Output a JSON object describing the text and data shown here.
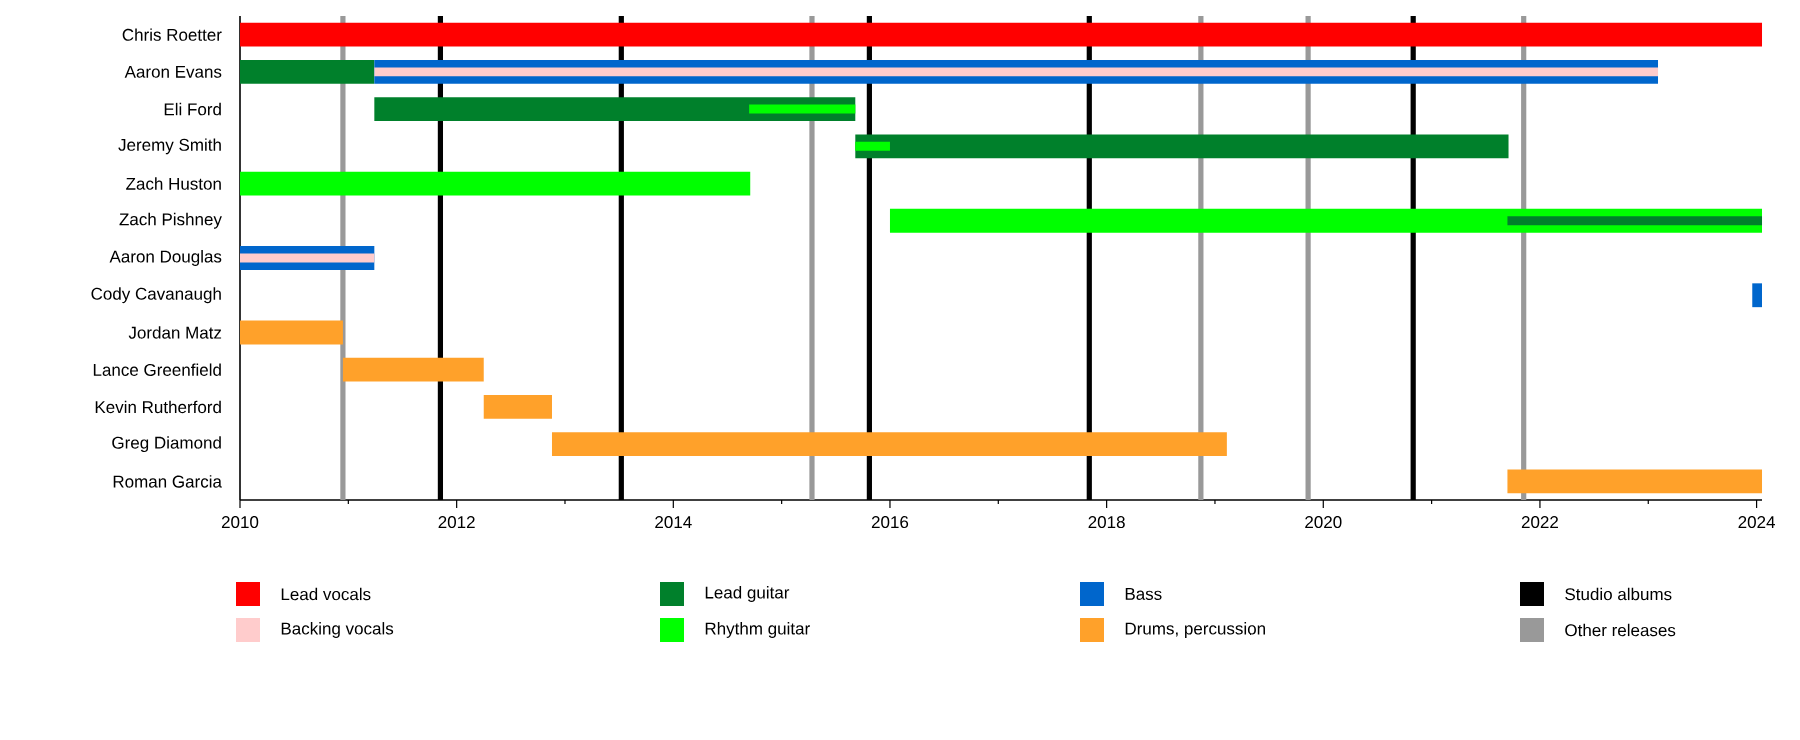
{
  "chart_data": {
    "type": "bar",
    "orientation": "horizontal",
    "legend": "bottom",
    "categories": [
      "Chris Roetter",
      "Aaron Evans",
      "Eli Ford",
      "Jeremy Smith",
      "Zach Huston",
      "Zach Pishney",
      "Aaron Douglas",
      "Cody Cavanaugh",
      "Jordan Matz",
      "Lance Greenfield",
      "Kevin Rutherford",
      "Greg Diamond",
      "Roman Garcia"
    ],
    "series": [
      {
        "name": "Lead vocals",
        "color": "#ff0000",
        "values": [
          14.05,
          null,
          null,
          null,
          null,
          null,
          null,
          null,
          null,
          null,
          null,
          null,
          null
        ],
        "base": [
          2010,
          null,
          null,
          null,
          null,
          null,
          null,
          null,
          null,
          null,
          null,
          null,
          null
        ]
      },
      {
        "name": "Backing vocals",
        "color": "#ffcccc",
        "values": [
          null,
          11.85,
          null,
          null,
          null,
          null,
          1.24,
          null,
          null,
          null,
          null,
          null,
          null
        ],
        "base": [
          null,
          2011.24,
          null,
          null,
          null,
          null,
          2010,
          null,
          null,
          null,
          null,
          null,
          null
        ]
      },
      {
        "name": "Lead guitar",
        "color": "#00802b",
        "values": [
          null,
          1.24,
          4.44,
          6.03,
          null,
          null,
          null,
          null,
          null,
          null,
          null,
          null,
          null
        ],
        "base": [
          null,
          2010,
          2011.24,
          2015.68,
          null,
          null,
          null,
          null,
          null,
          null,
          null,
          null,
          null
        ]
      },
      {
        "name": "Rhythm guitar",
        "color": "#00ff00",
        "values": [
          null,
          null,
          null,
          null,
          4.71,
          8.05,
          null,
          null,
          null,
          null,
          null,
          null,
          null
        ],
        "base": [
          null,
          null,
          null,
          null,
          2010,
          2016.0,
          null,
          null,
          null,
          null,
          null,
          null,
          null
        ]
      },
      {
        "name": "Bass",
        "color": "#0066cc",
        "values": [
          null,
          11.85,
          null,
          null,
          null,
          null,
          1.24,
          0.09,
          null,
          null,
          null,
          null,
          null
        ],
        "base": [
          null,
          2011.24,
          null,
          null,
          null,
          null,
          2010,
          2023.96,
          null,
          null,
          null,
          null,
          null
        ]
      },
      {
        "name": "Drums, percussion",
        "color": "#ffa12a",
        "values": [
          null,
          null,
          null,
          null,
          null,
          null,
          null,
          null,
          0.95,
          1.3,
          0.63,
          6.23,
          2.35
        ],
        "base": [
          null,
          null,
          null,
          null,
          null,
          null,
          null,
          null,
          2010,
          2010.95,
          2012.25,
          2012.88,
          2021.7
        ]
      },
      {
        "color": "#00ff00",
        "values": [
          null,
          null,
          0.98,
          0.32,
          null,
          null,
          null,
          null,
          null,
          null,
          null,
          null,
          null
        ],
        "base": [
          null,
          null,
          2014.7,
          2015.68,
          null,
          null,
          null,
          null,
          null,
          null,
          null,
          null,
          null
        ]
      },
      {
        "color": "#00802b",
        "values": [
          null,
          null,
          null,
          null,
          null,
          2.35,
          null,
          null,
          null,
          null,
          null,
          null,
          null
        ],
        "base": [
          null,
          null,
          null,
          null,
          null,
          2021.7,
          null,
          null,
          null,
          null,
          null,
          null,
          null
        ]
      }
    ],
    "xlim": [
      2010,
      2024.05
    ],
    "xticks": [
      2010,
      2012,
      2014,
      2016,
      2018,
      2020,
      2022,
      2024
    ],
    "ref_lines": [
      {
        "axis": "x",
        "value": 2011.85,
        "label": "Studio albums",
        "color": "#000000"
      },
      {
        "axis": "x",
        "value": 2013.52,
        "color": "#000000"
      },
      {
        "axis": "x",
        "value": 2015.81,
        "color": "#000000"
      },
      {
        "axis": "x",
        "value": 2017.84,
        "color": "#000000"
      },
      {
        "axis": "x",
        "value": 2020.83,
        "color": "#000000"
      },
      {
        "axis": "x",
        "value": 2010.95,
        "label": "Other releases",
        "color": "#999999"
      },
      {
        "axis": "x",
        "value": 2015.28,
        "color": "#999999"
      },
      {
        "axis": "x",
        "value": 2018.87,
        "color": "#999999"
      },
      {
        "axis": "x",
        "value": 2019.86,
        "color": "#999999"
      },
      {
        "axis": "x",
        "value": 2021.85,
        "color": "#999999"
      }
    ]
  }
}
